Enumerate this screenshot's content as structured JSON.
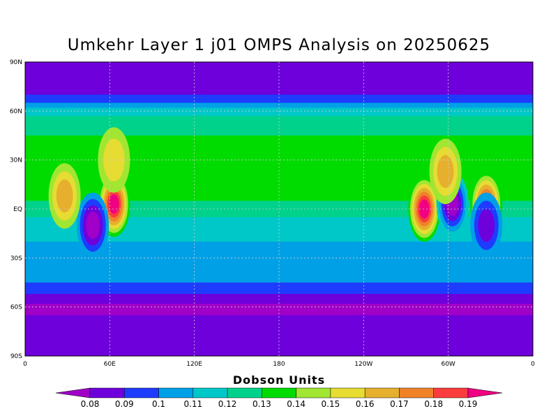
{
  "title": "Umkehr Layer 1 j01 OMPS Analysis on 20250625",
  "map": {
    "lat_labels": [
      "90N",
      "60N",
      "30N",
      "EQ",
      "30S",
      "60S",
      "90S"
    ],
    "lon_labels": [
      "0",
      "60E",
      "120E",
      "180",
      "120W",
      "60W",
      "0"
    ],
    "grid": true
  },
  "colorbar": {
    "title": "Dobson Units",
    "labels": [
      "0.08",
      "0.09",
      "0.1",
      "0.11",
      "0.12",
      "0.13",
      "0.14",
      "0.15",
      "0.16",
      "0.17",
      "0.18",
      "0.19"
    ],
    "colors": [
      "#a000c8",
      "#6e00dc",
      "#1e3cff",
      "#00a0e6",
      "#00c8c8",
      "#00d28c",
      "#00dc00",
      "#a0e632",
      "#e6dc32",
      "#e6af2d",
      "#f08228",
      "#fa3c3c",
      "#f00082"
    ]
  },
  "chart_data": {
    "type": "heatmap",
    "title": "Umkehr Layer 1 j01 OMPS Analysis on 20250625",
    "units": "Dobson Units",
    "x_range": [
      0,
      360
    ],
    "y_range": [
      -90,
      90
    ],
    "levels": [
      0.08,
      0.09,
      0.1,
      0.11,
      0.12,
      0.13,
      0.14,
      0.15,
      0.16,
      0.17,
      0.18,
      0.19
    ],
    "zonal_profile": [
      {
        "lat": 90,
        "level_index": 1
      },
      {
        "lat": 75,
        "level_index": 1
      },
      {
        "lat": 70,
        "level_index": 2
      },
      {
        "lat": 65,
        "level_index": 3
      },
      {
        "lat": 62,
        "level_index": 4
      },
      {
        "lat": 57,
        "level_index": 5
      },
      {
        "lat": 45,
        "level_index": 6
      },
      {
        "lat": 10,
        "level_index": 6
      },
      {
        "lat": 5,
        "level_index": 5
      },
      {
        "lat": -5,
        "level_index": 4
      },
      {
        "lat": -20,
        "level_index": 3
      },
      {
        "lat": -35,
        "level_index": 3
      },
      {
        "lat": -45,
        "level_index": 2
      },
      {
        "lat": -52,
        "level_index": 1
      },
      {
        "lat": -58,
        "level_index": 0
      },
      {
        "lat": -65,
        "level_index": 1
      },
      {
        "lat": -75,
        "level_index": 1
      },
      {
        "lat": -90,
        "level_index": 0
      }
    ],
    "features": [
      {
        "lon": 63,
        "lat": 3,
        "level_index": 12,
        "note": "maximum"
      },
      {
        "lon": 283,
        "lat": 0,
        "level_index": 12,
        "note": "maximum"
      },
      {
        "lon": 303,
        "lat": 3,
        "level_index": 0,
        "note": "minimum"
      },
      {
        "lon": 327,
        "lat": 3,
        "level_index": 11,
        "note": "maximum"
      },
      {
        "lon": 48,
        "lat": -10,
        "level_index": 0,
        "note": "minimum"
      },
      {
        "lon": 28,
        "lat": 8,
        "level_index": 9,
        "note": "maximum"
      },
      {
        "lon": 298,
        "lat": 23,
        "level_index": 9,
        "note": "maximum"
      },
      {
        "lon": 327,
        "lat": -10,
        "level_index": 1,
        "note": "minimum"
      },
      {
        "lon": 63,
        "lat": 30,
        "level_index": 8,
        "note": "maximum"
      }
    ]
  }
}
